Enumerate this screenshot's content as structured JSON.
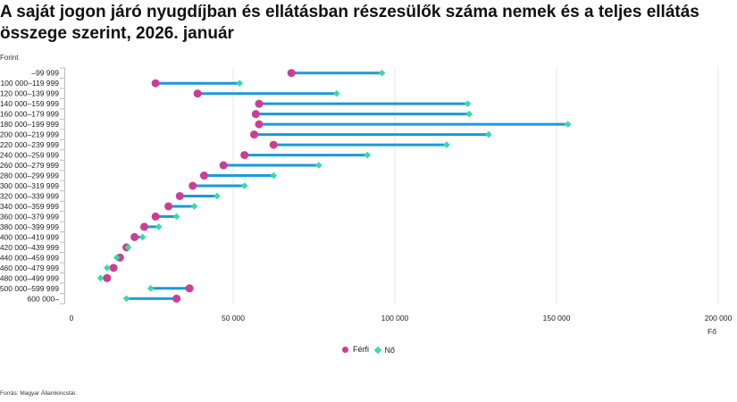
{
  "title": "A saját jogon járó nyugdíjban és ellátásban részesülők száma nemek és a teljes ellátás összege szerint, 2026. január",
  "y_axis_unit": "Forint",
  "x_axis_unit": "Fő",
  "source": "Forrás: Magyar Államkincstár.",
  "legend": [
    {
      "label": "Férfi",
      "color": "#cc3d94",
      "marker": "circle"
    },
    {
      "label": "Nő",
      "color": "#3dd9a0",
      "marker": "diamond"
    }
  ],
  "colors": {
    "male": "#cc3d94",
    "female": "#3dd9a0",
    "connector": "#1a9ad6",
    "grid": "#e6e6e6"
  },
  "chart_data": {
    "type": "dumbbell",
    "title": "A saját jogon járó nyugdíjban és ellátásban részesülők száma nemek és a teljes ellátás összege szerint, 2026. január",
    "xlabel": "Fő",
    "ylabel": "Forint",
    "xlim": [
      0,
      200000
    ],
    "xticks": [
      0,
      50000,
      100000,
      150000,
      200000
    ],
    "xtick_labels": [
      "0",
      "50 000",
      "100 000",
      "150 000",
      "200 000"
    ],
    "grid": "vertical",
    "legend_position": "bottom",
    "categories": [
      "–99 999",
      "100 000–119 999",
      "120 000–139 999",
      "140 000–159 999",
      "160 000–179 999",
      "180 000–199 999",
      "200 000–219 999",
      "220 000–239 999",
      "240 000–259 999",
      "260 000–279 999",
      "280 000–299 999",
      "300 000–319 999",
      "320 000–339 999",
      "340 000–359 999",
      "360 000–379 999",
      "380 000–399 999",
      "400 000–419 999",
      "420 000–439 999",
      "440 000–459 999",
      "460 000–479 999",
      "480 000–499 999",
      "500 000–599 999",
      "600 000–"
    ],
    "series": [
      {
        "name": "Férfi",
        "values": [
          68000,
          26000,
          39000,
          58000,
          57000,
          58000,
          56500,
          62500,
          53500,
          47000,
          41000,
          37500,
          33500,
          30000,
          26000,
          22500,
          19500,
          17000,
          15000,
          13000,
          11000,
          36500,
          32500
        ]
      },
      {
        "name": "Nő",
        "values": [
          96000,
          52000,
          82000,
          122500,
          123000,
          153500,
          129000,
          116000,
          91500,
          76500,
          62500,
          53500,
          45000,
          38000,
          32500,
          27000,
          22000,
          17500,
          14000,
          11000,
          9000,
          24500,
          17000
        ]
      }
    ]
  }
}
